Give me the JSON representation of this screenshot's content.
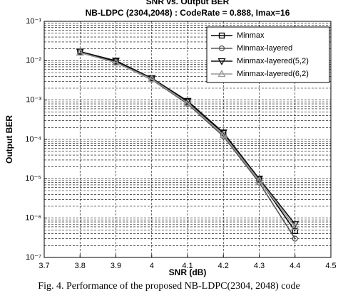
{
  "chart_data": {
    "type": "line",
    "title": "SNR vs. Output BER",
    "subtitle": "NB-LDPC (2304,2048) : CodeRate = 0.888, Imax=16",
    "x_label": "SNR (dB)",
    "y_label": "Output BER",
    "caption": "Fig. 4. Performance of the proposed NB-LDPC(2304, 2048) code",
    "x": [
      3.8,
      3.9,
      4.0,
      4.1,
      4.2,
      4.3,
      4.4
    ],
    "series": [
      {
        "name": "Minmax",
        "color": "#000000",
        "marker": "square",
        "values": [
          0.017,
          0.0095,
          0.0035,
          0.0009,
          0.000145,
          9.5e-06,
          4.7e-07
        ]
      },
      {
        "name": "Minmax-layered",
        "color": "#555555",
        "marker": "circle",
        "values": [
          0.016,
          0.009,
          0.0033,
          0.0008,
          0.00012,
          8e-06,
          3e-07
        ]
      },
      {
        "name": "Minmax-layered(5,2)",
        "color": "#111111",
        "marker": "triangle-down",
        "values": [
          0.017,
          0.01,
          0.0036,
          0.00095,
          0.00015,
          1e-05,
          7e-07
        ]
      },
      {
        "name": "Minmax-layered(6,2)",
        "color": "#999999",
        "marker": "triangle-up",
        "values": [
          0.016,
          0.009,
          0.0034,
          0.00085,
          0.00013,
          9e-06,
          6e-07
        ]
      }
    ],
    "xlim": [
      3.7,
      4.5
    ],
    "xticks": [
      3.7,
      3.8,
      3.9,
      4,
      4.1,
      4.2,
      4.3,
      4.4,
      4.5
    ],
    "ylim": [
      1e-07,
      0.1
    ],
    "y_scale": "log",
    "yticks": [
      {
        "value": 1e-07,
        "label": "10⁻⁷"
      },
      {
        "value": 1e-06,
        "label": "10⁻⁶"
      },
      {
        "value": 1e-05,
        "label": "10⁻⁵"
      },
      {
        "value": 0.0001,
        "label": "10⁻⁴"
      },
      {
        "value": 0.001,
        "label": "10⁻³"
      },
      {
        "value": 0.01,
        "label": "10⁻²"
      },
      {
        "value": 0.1,
        "label": "10⁻¹"
      }
    ],
    "grid": true,
    "minor_grid": true,
    "legend": "upper right"
  }
}
